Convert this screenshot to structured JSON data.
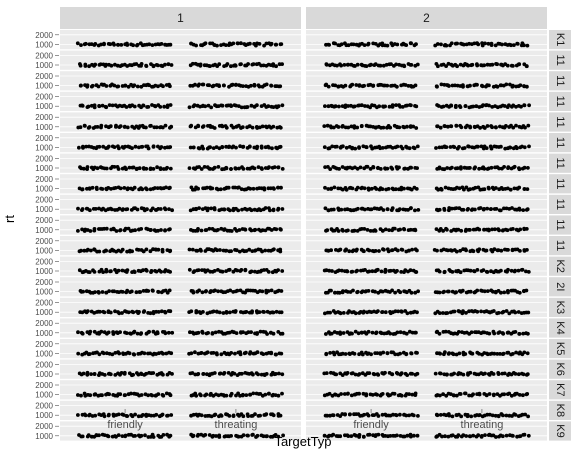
{
  "chart_data": {
    "type": "scatter",
    "x_categories": [
      "friendly",
      "threating"
    ],
    "xlabel": "TargetTyp",
    "ylabel": "rt",
    "y_ticks": [
      1000,
      2000
    ],
    "ylim": [
      500,
      2500
    ],
    "col_facets": [
      "1",
      "2"
    ],
    "row_facets": [
      "K1",
      "11",
      "11",
      "11",
      "11",
      "11",
      "11",
      "11",
      "11",
      "11",
      "11",
      "K2",
      "2I",
      "K3",
      "K4",
      "K5",
      "K6",
      "K7",
      "K8",
      "K9"
    ],
    "typical_rt": 1000,
    "colors": {
      "panel_bg": "#ebebeb",
      "strip_bg": "#d9d9d9",
      "point": "#000000",
      "grid": "#ffffff"
    }
  }
}
